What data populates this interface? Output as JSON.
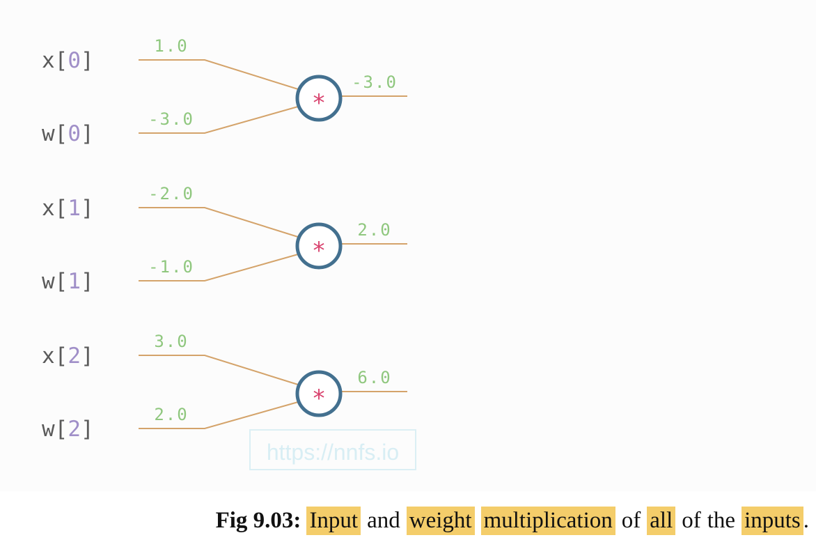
{
  "rows": [
    {
      "x": {
        "name": "x",
        "index": "0",
        "value": "1.0"
      },
      "w": {
        "name": "w",
        "index": "0",
        "value": "-3.0"
      },
      "operator": "*",
      "output": "-3.0"
    },
    {
      "x": {
        "name": "x",
        "index": "1",
        "value": "-2.0"
      },
      "w": {
        "name": "w",
        "index": "1",
        "value": "-1.0"
      },
      "operator": "*",
      "output": "2.0"
    },
    {
      "x": {
        "name": "x",
        "index": "2",
        "value": "3.0"
      },
      "w": {
        "name": "w",
        "index": "2",
        "value": "2.0"
      },
      "operator": "*",
      "output": "6.0"
    }
  ],
  "watermark": "https://nnfs.io",
  "caption": {
    "label": "Fig 9.03:",
    "words": [
      "Input",
      "and",
      "weight",
      "multiplication",
      "of",
      "all",
      "of",
      "the",
      "inputs",
      "."
    ]
  },
  "colors": {
    "wire": "#d4a36a",
    "node_stroke": "#43708f",
    "operator": "#d9446f",
    "value_text": "#8fc77e",
    "index_text": "#a08fc8",
    "highlight": "#f4cd6a"
  }
}
